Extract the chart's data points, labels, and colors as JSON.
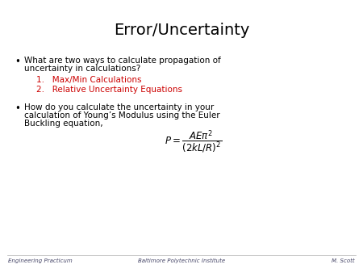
{
  "title": "Error/Uncertainty",
  "title_fontsize": 14,
  "title_color": "#000000",
  "background_color": "#ffffff",
  "bullet1_line1": "What are two ways to calculate propagation of",
  "bullet1_line2": "uncertainty in calculations?",
  "bullet1_fontsize": 7.5,
  "item1": "1.   Max/Min Calculations",
  "item2": "2.   Relative Uncertainty Equations",
  "items_fontsize": 7.5,
  "items_color": "#cc0000",
  "bullet2_line1": "How do you calculate the uncertainty in your",
  "bullet2_line2": "calculation of Young’s Modulus using the Euler",
  "bullet2_line3": "Buckling equation,",
  "bullet2_fontsize": 7.5,
  "formula": "$P = \\dfrac{AE\\pi^2}{(2kL/R)^2}$",
  "formula_fontsize": 8.5,
  "footer_left": "Engineering Practicum",
  "footer_center": "Baltimore Polytechnic Institute",
  "footer_right": "M. Scott",
  "footer_fontsize": 5.0,
  "footer_color": "#444466"
}
